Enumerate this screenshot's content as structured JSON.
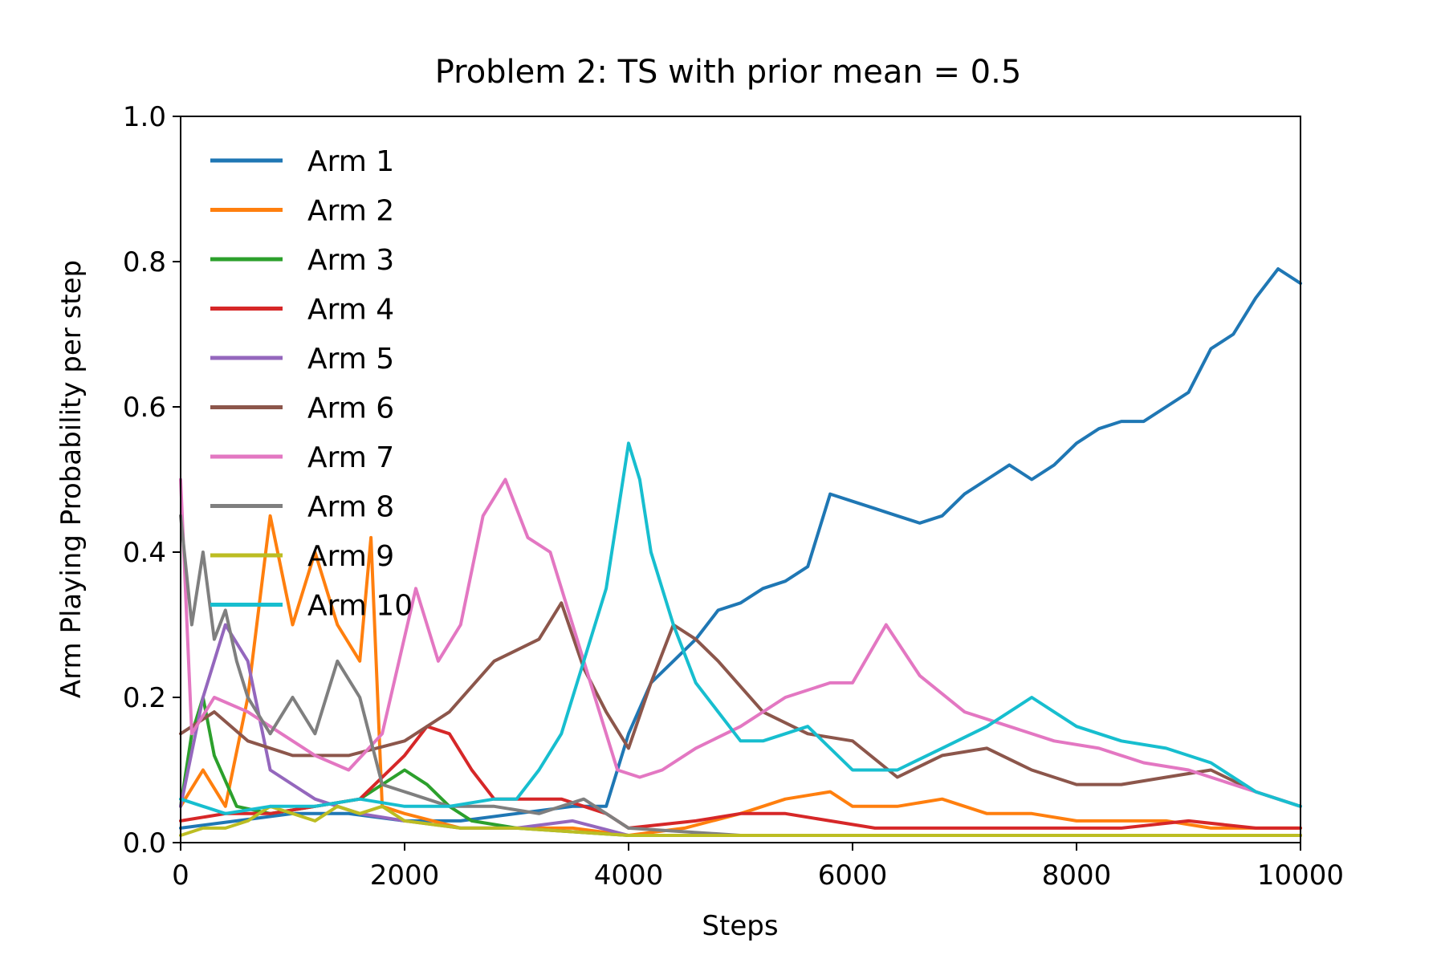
{
  "chart_data": {
    "type": "line",
    "title": "Problem 2: TS with prior mean = 0.5",
    "xlabel": "Steps",
    "ylabel": "Arm Playing Probability per step",
    "xlim": [
      0,
      10000
    ],
    "ylim": [
      0,
      1.0
    ],
    "xticks": [
      0,
      2000,
      4000,
      6000,
      8000,
      10000
    ],
    "xtick_labels": [
      "0",
      "2000",
      "4000",
      "6000",
      "8000",
      "10000"
    ],
    "yticks": [
      0,
      0.2,
      0.4,
      0.6,
      0.8,
      1.0
    ],
    "ytick_labels": [
      "0.0",
      "0.2",
      "0.4",
      "0.6",
      "0.8",
      "1.0"
    ],
    "grid": false,
    "legend_position": "upper-left",
    "series": [
      {
        "name": "Arm 1",
        "color": "#1f77b4",
        "x": [
          0,
          500,
          1000,
          1500,
          2000,
          2500,
          3000,
          3500,
          3800,
          4000,
          4200,
          4400,
          4600,
          4800,
          5000,
          5200,
          5400,
          5600,
          5800,
          6000,
          6200,
          6400,
          6600,
          6800,
          7000,
          7200,
          7400,
          7600,
          7800,
          8000,
          8200,
          8400,
          8600,
          8800,
          9000,
          9200,
          9400,
          9600,
          9800,
          10000
        ],
        "y": [
          0.02,
          0.03,
          0.04,
          0.04,
          0.03,
          0.03,
          0.04,
          0.05,
          0.05,
          0.15,
          0.22,
          0.25,
          0.28,
          0.32,
          0.33,
          0.35,
          0.36,
          0.38,
          0.48,
          0.47,
          0.46,
          0.45,
          0.44,
          0.45,
          0.48,
          0.5,
          0.52,
          0.5,
          0.52,
          0.55,
          0.57,
          0.58,
          0.58,
          0.6,
          0.62,
          0.68,
          0.7,
          0.75,
          0.79,
          0.77
        ]
      },
      {
        "name": "Arm 2",
        "color": "#ff7f0e",
        "x": [
          0,
          200,
          400,
          600,
          800,
          1000,
          1200,
          1400,
          1600,
          1700,
          1800,
          2000,
          2500,
          3000,
          3500,
          4000,
          4500,
          5000,
          5400,
          5800,
          6000,
          6400,
          6800,
          7200,
          7600,
          8000,
          8400,
          8800,
          9200,
          9600,
          10000
        ],
        "y": [
          0.05,
          0.1,
          0.05,
          0.2,
          0.45,
          0.3,
          0.4,
          0.3,
          0.25,
          0.42,
          0.05,
          0.04,
          0.02,
          0.02,
          0.02,
          0.01,
          0.02,
          0.04,
          0.06,
          0.07,
          0.05,
          0.05,
          0.06,
          0.04,
          0.04,
          0.03,
          0.03,
          0.03,
          0.02,
          0.02,
          0.02
        ]
      },
      {
        "name": "Arm 3",
        "color": "#2ca02c",
        "x": [
          0,
          100,
          200,
          300,
          500,
          800,
          1200,
          1600,
          2000,
          2200,
          2400,
          2600,
          3000,
          4000,
          5000,
          6000,
          7000,
          8000,
          9000,
          10000
        ],
        "y": [
          0.05,
          0.15,
          0.2,
          0.12,
          0.05,
          0.04,
          0.05,
          0.06,
          0.1,
          0.08,
          0.05,
          0.03,
          0.02,
          0.01,
          0.01,
          0.01,
          0.01,
          0.01,
          0.01,
          0.01
        ]
      },
      {
        "name": "Arm 4",
        "color": "#d62728",
        "x": [
          0,
          400,
          800,
          1200,
          1600,
          2000,
          2200,
          2400,
          2600,
          2800,
          3000,
          3400,
          3800,
          4000,
          4600,
          5000,
          5400,
          5800,
          6200,
          7000,
          7800,
          8400,
          9000,
          9600,
          10000
        ],
        "y": [
          0.03,
          0.04,
          0.04,
          0.05,
          0.06,
          0.12,
          0.16,
          0.15,
          0.1,
          0.06,
          0.06,
          0.06,
          0.04,
          0.02,
          0.03,
          0.04,
          0.04,
          0.03,
          0.02,
          0.02,
          0.02,
          0.02,
          0.03,
          0.02,
          0.02
        ]
      },
      {
        "name": "Arm 5",
        "color": "#9467bd",
        "x": [
          0,
          200,
          400,
          600,
          800,
          1200,
          1600,
          2000,
          2500,
          3000,
          3500,
          4000,
          5000,
          6000,
          7000,
          8000,
          9000,
          10000
        ],
        "y": [
          0.05,
          0.2,
          0.3,
          0.25,
          0.1,
          0.06,
          0.04,
          0.03,
          0.02,
          0.02,
          0.03,
          0.01,
          0.01,
          0.01,
          0.01,
          0.01,
          0.01,
          0.01
        ]
      },
      {
        "name": "Arm 6",
        "color": "#8c564b",
        "x": [
          0,
          300,
          600,
          1000,
          1500,
          2000,
          2400,
          2800,
          3200,
          3400,
          3600,
          3800,
          4000,
          4200,
          4400,
          4600,
          4800,
          5200,
          5600,
          6000,
          6400,
          6800,
          7200,
          7600,
          8000,
          8400,
          8800,
          9200,
          9600,
          10000
        ],
        "y": [
          0.15,
          0.18,
          0.14,
          0.12,
          0.12,
          0.14,
          0.18,
          0.25,
          0.28,
          0.33,
          0.24,
          0.18,
          0.13,
          0.22,
          0.3,
          0.28,
          0.25,
          0.18,
          0.15,
          0.14,
          0.09,
          0.12,
          0.13,
          0.1,
          0.08,
          0.08,
          0.09,
          0.1,
          0.07,
          0.05
        ]
      },
      {
        "name": "Arm 7",
        "color": "#e377c2",
        "x": [
          0,
          100,
          300,
          600,
          900,
          1200,
          1500,
          1800,
          2100,
          2300,
          2500,
          2700,
          2900,
          3100,
          3300,
          3500,
          3700,
          3900,
          4100,
          4300,
          4600,
          5000,
          5400,
          5800,
          6000,
          6300,
          6600,
          7000,
          7400,
          7800,
          8200,
          8600,
          9000,
          9400,
          9800,
          10000
        ],
        "y": [
          0.5,
          0.15,
          0.2,
          0.18,
          0.15,
          0.12,
          0.1,
          0.15,
          0.35,
          0.25,
          0.3,
          0.45,
          0.5,
          0.42,
          0.4,
          0.3,
          0.2,
          0.1,
          0.09,
          0.1,
          0.13,
          0.16,
          0.2,
          0.22,
          0.22,
          0.3,
          0.23,
          0.18,
          0.16,
          0.14,
          0.13,
          0.11,
          0.1,
          0.08,
          0.06,
          0.05
        ]
      },
      {
        "name": "Arm 8",
        "color": "#7f7f7f",
        "x": [
          0,
          100,
          200,
          300,
          400,
          500,
          600,
          800,
          1000,
          1200,
          1400,
          1600,
          1800,
          2000,
          2400,
          2800,
          3200,
          3600,
          4000,
          5000,
          6000,
          7000,
          8000,
          9000,
          10000
        ],
        "y": [
          0.45,
          0.3,
          0.4,
          0.28,
          0.32,
          0.25,
          0.2,
          0.15,
          0.2,
          0.15,
          0.25,
          0.2,
          0.08,
          0.07,
          0.05,
          0.05,
          0.04,
          0.06,
          0.02,
          0.01,
          0.01,
          0.01,
          0.01,
          0.01,
          0.01
        ]
      },
      {
        "name": "Arm 9",
        "color": "#bcbd22",
        "x": [
          0,
          200,
          400,
          600,
          800,
          1000,
          1200,
          1400,
          1600,
          1800,
          2000,
          2500,
          3000,
          4000,
          5000,
          6000,
          7000,
          8000,
          9000,
          10000
        ],
        "y": [
          0.01,
          0.02,
          0.02,
          0.03,
          0.05,
          0.04,
          0.03,
          0.05,
          0.04,
          0.05,
          0.03,
          0.02,
          0.02,
          0.01,
          0.01,
          0.01,
          0.01,
          0.01,
          0.01,
          0.01
        ]
      },
      {
        "name": "Arm 10",
        "color": "#17becf",
        "x": [
          0,
          200,
          400,
          800,
          1200,
          1600,
          2000,
          2400,
          2800,
          3000,
          3200,
          3400,
          3600,
          3800,
          3900,
          4000,
          4100,
          4200,
          4400,
          4600,
          4800,
          5000,
          5200,
          5400,
          5600,
          6000,
          6400,
          6800,
          7200,
          7600,
          8000,
          8400,
          8800,
          9200,
          9600,
          10000
        ],
        "y": [
          0.06,
          0.05,
          0.04,
          0.05,
          0.05,
          0.06,
          0.05,
          0.05,
          0.06,
          0.06,
          0.1,
          0.15,
          0.25,
          0.35,
          0.45,
          0.55,
          0.5,
          0.4,
          0.3,
          0.22,
          0.18,
          0.14,
          0.14,
          0.15,
          0.16,
          0.1,
          0.1,
          0.13,
          0.16,
          0.2,
          0.16,
          0.14,
          0.13,
          0.11,
          0.07,
          0.05
        ]
      }
    ]
  }
}
